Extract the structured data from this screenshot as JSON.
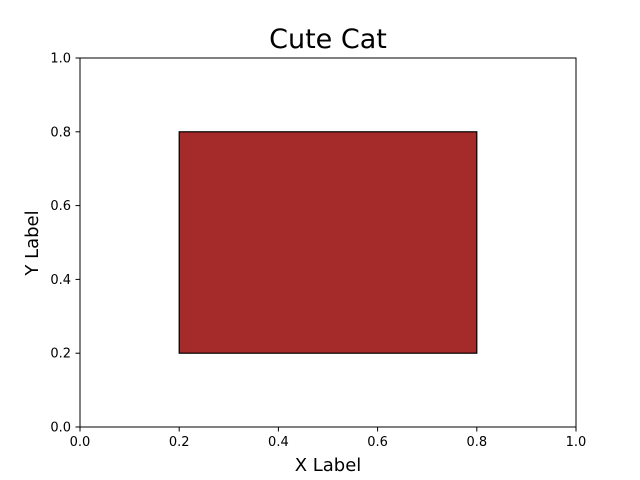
{
  "chart_data": {
    "type": "rectangle",
    "title": "Cute Cat",
    "xlabel": "X Label",
    "ylabel": "Y Label",
    "xlim": [
      0.0,
      1.0
    ],
    "ylim": [
      0.0,
      1.0
    ],
    "xticks": [
      "0.0",
      "0.2",
      "0.4",
      "0.6",
      "0.8",
      "1.0"
    ],
    "yticks": [
      "0.0",
      "0.2",
      "0.4",
      "0.6",
      "0.8",
      "1.0"
    ],
    "grid": false,
    "shapes": [
      {
        "shape": "rectangle",
        "x": 0.2,
        "y": 0.2,
        "width": 0.6,
        "height": 0.6,
        "fill": "#a52a2a",
        "edgecolor": "#000000"
      }
    ]
  }
}
